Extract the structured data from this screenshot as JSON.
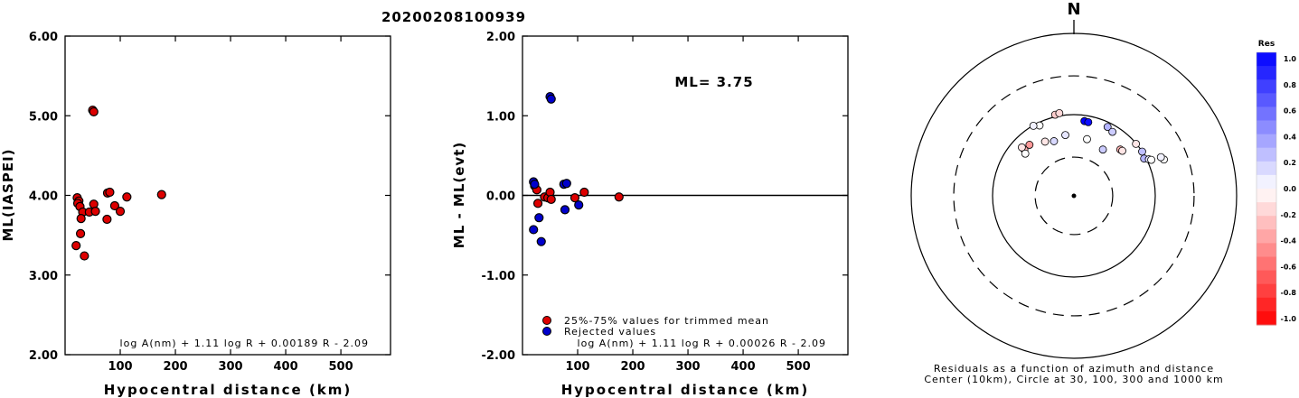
{
  "title": "20200208100939",
  "colors": {
    "trimmed": "#dd0000",
    "rejected": "#0000cc",
    "axis": "#000000"
  },
  "chart_data": [
    {
      "type": "scatter",
      "xlabel": "Hypocentral distance (km)",
      "ylabel": "ML(IASPEI)",
      "xlim": [
        0,
        590
      ],
      "ylim": [
        2.0,
        6.0
      ],
      "xticks": [
        100,
        200,
        300,
        400,
        500
      ],
      "yticks": [
        "2.00",
        "3.00",
        "4.00",
        "5.00",
        "6.00"
      ],
      "annotation": "log A(nm) + 1.11 log R + 0.00189 R - 2.09",
      "series": [
        {
          "color": "#dd0000",
          "points": [
            [
              50,
              5.07
            ],
            [
              52,
              5.05
            ],
            [
              22,
              3.97
            ],
            [
              25,
              3.93
            ],
            [
              23,
              3.9
            ],
            [
              27,
              3.86
            ],
            [
              32,
              3.79
            ],
            [
              44,
              3.79
            ],
            [
              52,
              3.89
            ],
            [
              55,
              3.8
            ],
            [
              29,
              3.71
            ],
            [
              77,
              4.03
            ],
            [
              81,
              4.04
            ],
            [
              90,
              3.87
            ],
            [
              100,
              3.8
            ],
            [
              112,
              3.98
            ],
            [
              76,
              3.7
            ],
            [
              20,
              3.37
            ],
            [
              28,
              3.52
            ],
            [
              35,
              3.24
            ],
            [
              175,
              4.01
            ]
          ]
        }
      ]
    },
    {
      "type": "scatter",
      "xlabel": "Hypocentral distance (km)",
      "ylabel": "ML - ML(evt)",
      "xlim": [
        0,
        590
      ],
      "ylim": [
        -2.0,
        2.0
      ],
      "xticks": [
        100,
        200,
        300,
        400,
        500
      ],
      "yticks": [
        "-2.00",
        "-1.00",
        "0.00",
        "1.00",
        "2.00"
      ],
      "reference_line": 0,
      "annotation_ml": "ML= 3.75",
      "annotation": "log A(nm) + 1.11 log R + 0.00026 R - 2.09",
      "legend_position": "bottom-left",
      "series": [
        {
          "name": "25%-75% values for trimmed mean",
          "color": "#dd0000",
          "points": [
            [
              22,
              0.12
            ],
            [
              26,
              0.07
            ],
            [
              28,
              -0.1
            ],
            [
              40,
              -0.02
            ],
            [
              46,
              -0.03
            ],
            [
              50,
              0.04
            ],
            [
              52,
              -0.05
            ],
            [
              95,
              -0.03
            ],
            [
              112,
              0.04
            ],
            [
              175,
              -0.02
            ]
          ]
        },
        {
          "name": "Rejected values",
          "color": "#0000cc",
          "points": [
            [
              50,
              1.24
            ],
            [
              52,
              1.21
            ],
            [
              20,
              0.17
            ],
            [
              22,
              0.14
            ],
            [
              30,
              -0.28
            ],
            [
              20,
              -0.43
            ],
            [
              34,
              -0.58
            ],
            [
              75,
              0.14
            ],
            [
              80,
              0.15
            ],
            [
              77,
              -0.18
            ],
            [
              102,
              -0.12
            ]
          ]
        }
      ]
    }
  ],
  "polar": {
    "north_label": "N",
    "caption_line1": "Residuals as a function of azimuth and distance",
    "caption_line2": "Center (10km), Circle at 30, 100, 300 and 1000 km",
    "rings": [
      {
        "km": 30,
        "style": "dashed"
      },
      {
        "km": 100,
        "style": "solid"
      },
      {
        "km": 300,
        "style": "dashed"
      },
      {
        "km": 1000,
        "style": "solid"
      }
    ],
    "stations": [
      {
        "az": 347,
        "dist": 106,
        "res": -0.2
      },
      {
        "az": 350,
        "dist": 108,
        "res": -0.15
      },
      {
        "az": 334,
        "dist": 92,
        "res": 0.0
      },
      {
        "az": 330,
        "dist": 99,
        "res": 0.05
      },
      {
        "az": 313,
        "dist": 68,
        "res": -0.3
      },
      {
        "az": 311,
        "dist": 62,
        "res": 0.0
      },
      {
        "az": 319,
        "dist": 68,
        "res": -0.4
      },
      {
        "az": 313,
        "dist": 75,
        "res": -0.1
      },
      {
        "az": 332,
        "dist": 57,
        "res": -0.1
      },
      {
        "az": 340,
        "dist": 52,
        "res": 0.15
      },
      {
        "az": 352,
        "dist": 57,
        "res": 0.1
      },
      {
        "az": 8,
        "dist": 85,
        "res": 1.0
      },
      {
        "az": 11,
        "dist": 84,
        "res": 0.95
      },
      {
        "az": 26,
        "dist": 88,
        "res": 0.3
      },
      {
        "az": 31,
        "dist": 83,
        "res": 0.2
      },
      {
        "az": 45,
        "dist": 64,
        "res": -0.3
      },
      {
        "az": 47,
        "dist": 65,
        "res": -0.1
      },
      {
        "az": 13,
        "dist": 52,
        "res": 0.0
      },
      {
        "az": 32,
        "dist": 47,
        "res": 0.2
      },
      {
        "az": 57,
        "dist": 100,
        "res": 0.25
      },
      {
        "az": 62,
        "dist": 95,
        "res": 0.3
      },
      {
        "az": 50,
        "dist": 99,
        "res": -0.1
      },
      {
        "az": 64,
        "dist": 106,
        "res": 0.1
      },
      {
        "az": 65,
        "dist": 112,
        "res": 0.0
      },
      {
        "az": 68,
        "dist": 156,
        "res": 0.0
      },
      {
        "az": 66,
        "dist": 148,
        "res": 0.05
      }
    ]
  },
  "colorbar": {
    "title": "Res",
    "ticks": [
      "1.0",
      "0.8",
      "0.6",
      "0.4",
      "0.2",
      "0.0",
      "-0.2",
      "-0.4",
      "-0.6",
      "-0.8",
      "-1.0"
    ]
  }
}
